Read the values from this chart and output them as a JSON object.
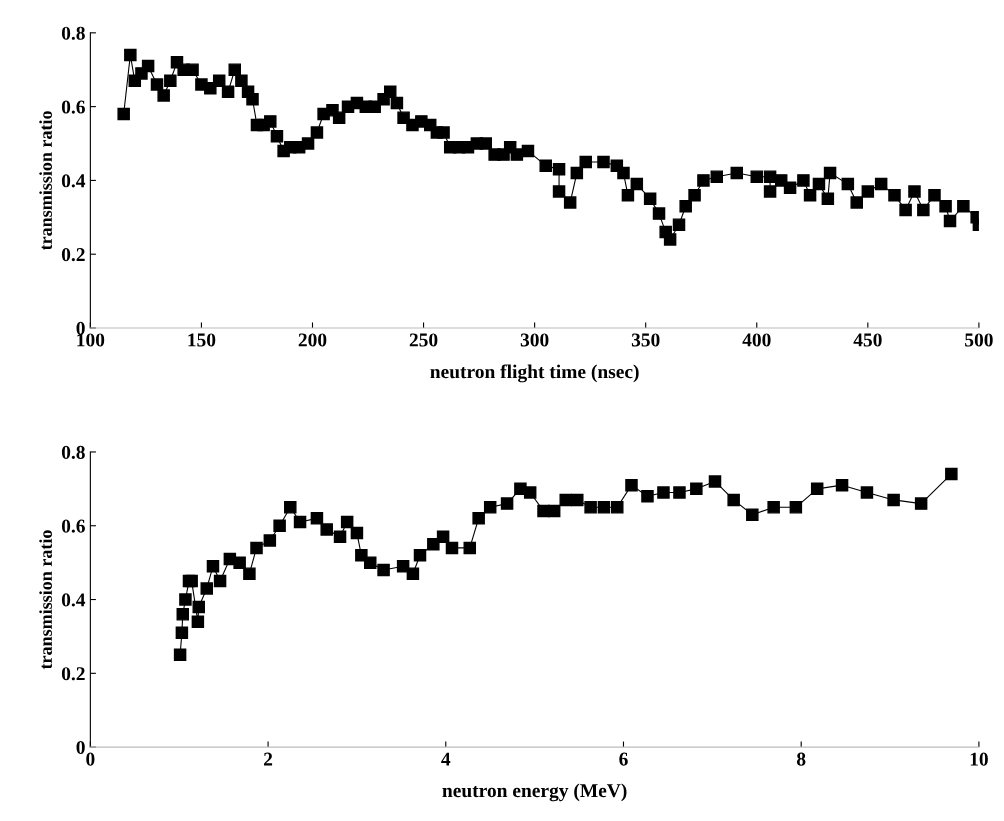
{
  "chart_data": [
    {
      "type": "line",
      "marker": "square",
      "xlabel": "neutron flight time (nsec)",
      "ylabel": "transmission ratio",
      "xlim": [
        100,
        500
      ],
      "xticks": [
        100,
        150,
        200,
        250,
        300,
        350,
        400,
        450,
        500
      ],
      "ylim": [
        0,
        0.8
      ],
      "yticks": [
        0,
        0.2,
        0.4,
        0.6,
        0.8
      ],
      "grid": false,
      "series": [
        {
          "color": "#000000",
          "x": [
            115,
            118,
            120,
            123,
            126,
            130,
            133,
            136,
            139,
            142,
            146,
            150,
            154,
            158,
            162,
            165,
            168,
            171,
            173,
            175,
            178,
            181,
            184,
            187,
            190,
            194,
            198,
            202,
            205,
            209,
            212,
            216,
            220,
            224,
            228,
            232,
            235,
            238,
            241,
            245,
            249,
            253,
            256,
            259,
            262,
            266,
            270,
            274,
            278,
            282,
            286,
            289,
            292,
            297,
            305,
            311,
            311,
            316,
            319,
            323,
            331,
            337,
            340,
            342,
            346,
            352,
            356,
            359,
            361,
            365,
            368,
            372,
            376,
            382,
            391,
            400,
            406,
            406,
            411,
            415,
            421,
            424,
            428,
            432,
            433,
            441,
            445,
            450,
            456,
            462,
            467,
            471,
            475,
            480,
            485,
            487,
            493,
            499,
            500
          ],
          "values": [
            0.58,
            0.74,
            0.67,
            0.69,
            0.71,
            0.66,
            0.63,
            0.67,
            0.72,
            0.7,
            0.7,
            0.66,
            0.65,
            0.67,
            0.64,
            0.7,
            0.67,
            0.64,
            0.62,
            0.55,
            0.55,
            0.56,
            0.52,
            0.48,
            0.49,
            0.49,
            0.5,
            0.53,
            0.58,
            0.59,
            0.57,
            0.6,
            0.61,
            0.6,
            0.6,
            0.62,
            0.64,
            0.61,
            0.57,
            0.55,
            0.56,
            0.55,
            0.53,
            0.53,
            0.49,
            0.49,
            0.49,
            0.5,
            0.5,
            0.47,
            0.47,
            0.49,
            0.47,
            0.48,
            0.44,
            0.43,
            0.37,
            0.34,
            0.42,
            0.45,
            0.45,
            0.44,
            0.42,
            0.36,
            0.39,
            0.35,
            0.31,
            0.26,
            0.24,
            0.28,
            0.33,
            0.36,
            0.4,
            0.41,
            0.42,
            0.41,
            0.41,
            0.37,
            0.4,
            0.38,
            0.4,
            0.36,
            0.39,
            0.35,
            0.42,
            0.39,
            0.34,
            0.37,
            0.39,
            0.36,
            0.32,
            0.37,
            0.32,
            0.36,
            0.33,
            0.29,
            0.33,
            0.3,
            0.28
          ]
        }
      ]
    },
    {
      "type": "line",
      "marker": "square",
      "xlabel": "neutron energy (MeV)",
      "ylabel": "transmission ratio",
      "xlim": [
        0,
        10
      ],
      "xticks": [
        0,
        2,
        4,
        6,
        8,
        10
      ],
      "ylim": [
        0,
        0.8
      ],
      "yticks": [
        0,
        0.2,
        0.4,
        0.6,
        0.8
      ],
      "grid": false,
      "series": [
        {
          "color": "#000000",
          "x": [
            1.01,
            1.03,
            1.04,
            1.07,
            1.11,
            1.14,
            1.21,
            1.22,
            1.31,
            1.38,
            1.46,
            1.57,
            1.68,
            1.79,
            1.87,
            2.02,
            2.13,
            2.25,
            2.36,
            2.55,
            2.66,
            2.81,
            2.89,
            3.0,
            3.05,
            3.15,
            3.3,
            3.52,
            3.63,
            3.71,
            3.86,
            3.97,
            4.07,
            4.27,
            4.37,
            4.5,
            4.69,
            4.84,
            4.95,
            5.1,
            5.22,
            5.35,
            5.48,
            5.63,
            5.78,
            5.93,
            6.09,
            6.27,
            6.45,
            6.63,
            6.82,
            7.03,
            7.24,
            7.45,
            7.69,
            7.94,
            8.18,
            8.46,
            8.74,
            9.04,
            9.35,
            9.69
          ],
          "values": [
            0.25,
            0.31,
            0.36,
            0.4,
            0.45,
            0.45,
            0.34,
            0.38,
            0.43,
            0.49,
            0.45,
            0.51,
            0.5,
            0.47,
            0.54,
            0.56,
            0.6,
            0.65,
            0.61,
            0.62,
            0.59,
            0.57,
            0.61,
            0.58,
            0.52,
            0.5,
            0.48,
            0.49,
            0.47,
            0.52,
            0.55,
            0.57,
            0.54,
            0.54,
            0.62,
            0.65,
            0.66,
            0.7,
            0.69,
            0.64,
            0.64,
            0.67,
            0.67,
            0.65,
            0.65,
            0.65,
            0.71,
            0.68,
            0.69,
            0.69,
            0.7,
            0.72,
            0.67,
            0.63,
            0.65,
            0.65,
            0.7,
            0.71,
            0.69,
            0.67,
            0.66,
            0.74
          ]
        }
      ]
    }
  ]
}
